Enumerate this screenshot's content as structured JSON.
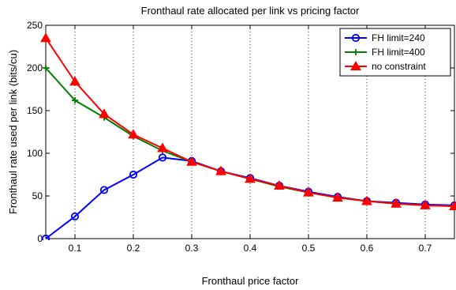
{
  "chart_data": {
    "type": "line",
    "title": "Fronthaul rate allocated per link vs pricing factor",
    "xlabel": "Fronthaul price factor",
    "ylabel": "Fronthaul rate used per link (bits/cu)",
    "xlim": [
      0.05,
      0.75
    ],
    "ylim": [
      0,
      250
    ],
    "xticks": [
      0.1,
      0.2,
      0.3,
      0.4,
      0.5,
      0.6,
      0.7
    ],
    "yticks": [
      0,
      50,
      100,
      150,
      200,
      250
    ],
    "grid": "vertical dotted",
    "legend_position": "top-right",
    "x": [
      0.05,
      0.1,
      0.15,
      0.2,
      0.25,
      0.3,
      0.35,
      0.4,
      0.45,
      0.5,
      0.55,
      0.6,
      0.65,
      0.7,
      0.75
    ],
    "series": [
      {
        "name": "FH limit=240",
        "color": "#0000ff",
        "marker": "circle",
        "values": [
          0,
          26,
          57,
          75,
          95,
          91,
          79,
          71,
          62,
          55,
          49,
          44,
          42,
          40,
          39
        ]
      },
      {
        "name": "FH limit=400",
        "color": "#008000",
        "marker": "plus",
        "values": [
          200,
          162,
          142,
          120,
          103,
          90,
          79,
          70,
          61,
          54,
          48,
          44,
          41,
          39,
          38
        ]
      },
      {
        "name": "no constraint",
        "color": "#ff0000",
        "marker": "triangle",
        "values": [
          235,
          184,
          146,
          122,
          106,
          90,
          79,
          70,
          62,
          54,
          48,
          44,
          41,
          39,
          38
        ]
      }
    ]
  }
}
